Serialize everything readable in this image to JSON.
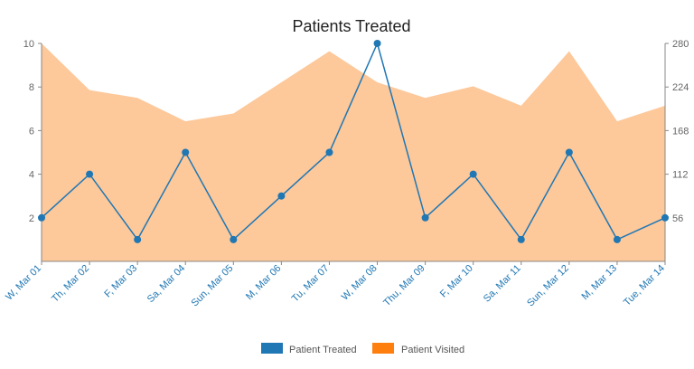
{
  "chart_data": {
    "type": "line",
    "title": "Patients Treated",
    "categories": [
      "W, Mar 01",
      "Th, Mar 02",
      "F, Mar 03",
      "Sa, Mar 04",
      "Sun, Mar 05",
      "M, Mar 06",
      "Tu, Mar 07",
      "W, Mar 08",
      "Thu, Mar 09",
      "F, Mar 10",
      "Sa, Mar 11",
      "Sun, Mar 12",
      "M, Mar 13",
      "Tue, Mar 14"
    ],
    "series": [
      {
        "name": "Patient Treated",
        "type": "line",
        "axis": "left",
        "color": "#1f77b4",
        "values": [
          2,
          4,
          1,
          5,
          1,
          3,
          5,
          10,
          2,
          4,
          1,
          5,
          1,
          2
        ]
      },
      {
        "name": "Patient Visited",
        "type": "area",
        "axis": "right",
        "color": "#ff7f0e",
        "fill": "#fdc89a",
        "values": [
          280,
          220,
          210,
          180,
          190,
          230,
          270,
          230,
          210,
          225,
          200,
          270,
          180,
          200
        ]
      }
    ],
    "left_axis": {
      "ylim": [
        0,
        10
      ],
      "ticks": [
        "2",
        "4",
        "6",
        "8",
        "10"
      ]
    },
    "right_axis": {
      "ylim": [
        0,
        280
      ],
      "ticks": [
        "56",
        "112",
        "168",
        "224",
        "280"
      ]
    },
    "legend_placement": "bottom-center",
    "grid": false
  }
}
